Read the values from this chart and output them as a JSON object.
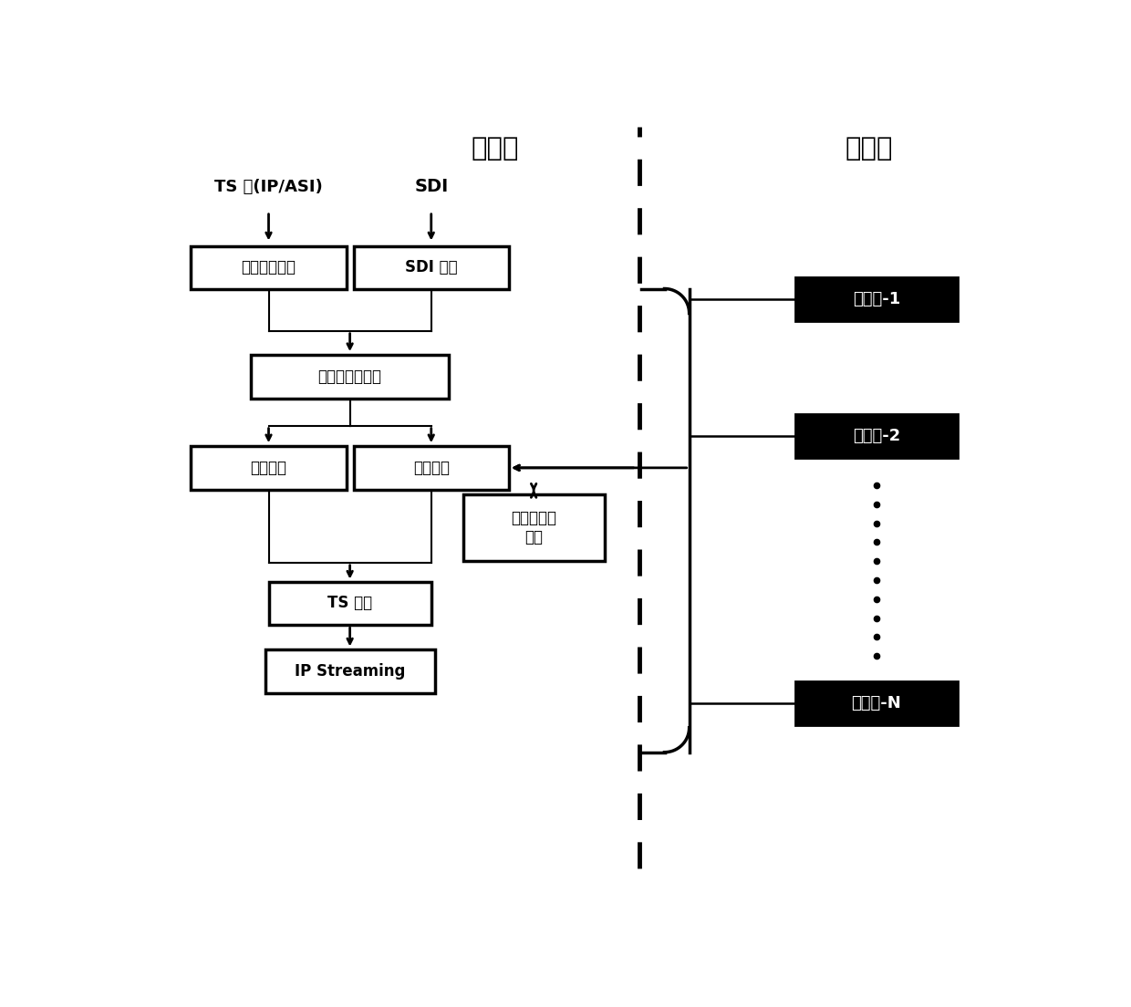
{
  "title_main": "主节点",
  "title_slave": "从节点",
  "label_ts_input": "TS 流(IP/ASI)",
  "label_sdi_input": "SDI",
  "box_audio_decode": "音、视频解码",
  "box_sdi_capture": "SDI 采集",
  "box_av_preprocess": "音、视频预处理",
  "box_audio_encode": "音频编码",
  "box_video_encode": "视频编码",
  "box_master_codec": "主节点编码\n内核",
  "box_ts_mux": "TS 复用",
  "box_ip_streaming": "IP Streaming",
  "box_slave1": "从节点-1",
  "box_slave2": "从节点-2",
  "box_slaveN": "从节点-N",
  "bg_color": "#ffffff",
  "text_color_black": "#000000",
  "text_color_white": "#ffffff"
}
